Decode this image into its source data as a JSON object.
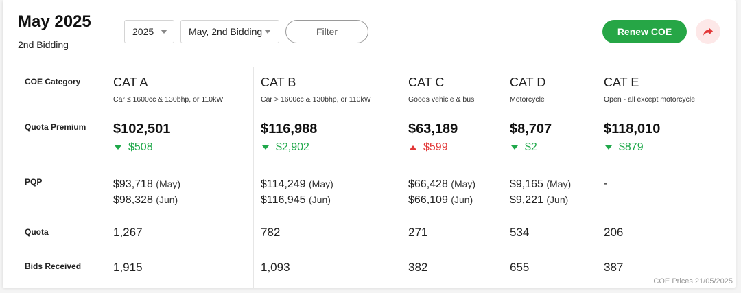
{
  "header": {
    "title": "May 2025",
    "subtitle": "2nd Bidding",
    "year_select": "2025",
    "bidding_select": "May, 2nd Bidding",
    "filter_label": "Filter",
    "renew_label": "Renew COE",
    "share_icon": "share-arrow-icon"
  },
  "row_labels": {
    "category": "COE Category",
    "premium": "Quota Premium",
    "pqp": "PQP",
    "quota": "Quota",
    "bids": "Bids Received"
  },
  "categories": [
    {
      "name": "CAT A",
      "desc": "Car ≤ 1600cc & 130bhp, or 110kW",
      "premium": "$102,501",
      "change": "$508",
      "direction": "down",
      "pqp": [
        {
          "value": "$93,718",
          "month": "(May)"
        },
        {
          "value": "$98,328",
          "month": "(Jun)"
        }
      ],
      "quota": "1,267",
      "bids": "1,915"
    },
    {
      "name": "CAT B",
      "desc": "Car > 1600cc & 130bhp, or 110kW",
      "premium": "$116,988",
      "change": "$2,902",
      "direction": "down",
      "pqp": [
        {
          "value": "$114,249",
          "month": "(May)"
        },
        {
          "value": "$116,945",
          "month": "(Jun)"
        }
      ],
      "quota": "782",
      "bids": "1,093"
    },
    {
      "name": "CAT C",
      "desc": "Goods vehicle & bus",
      "premium": "$63,189",
      "change": "$599",
      "direction": "up",
      "pqp": [
        {
          "value": "$66,428",
          "month": "(May)"
        },
        {
          "value": "$66,109",
          "month": "(Jun)"
        }
      ],
      "quota": "271",
      "bids": "382"
    },
    {
      "name": "CAT D",
      "desc": "Motorcycle",
      "premium": "$8,707",
      "change": "$2",
      "direction": "down",
      "pqp": [
        {
          "value": "$9,165",
          "month": "(May)"
        },
        {
          "value": "$9,221",
          "month": "(Jun)"
        }
      ],
      "quota": "534",
      "bids": "655"
    },
    {
      "name": "CAT E",
      "desc": "Open - all except motorcycle",
      "premium": "$118,010",
      "change": "$879",
      "direction": "down",
      "pqp_dash": "-",
      "quota": "206",
      "bids": "387"
    }
  ],
  "colors": {
    "green": "#26a646",
    "up_red": "#e23838",
    "down_green": "#1fa84a"
  },
  "footnote": "COE Prices 21/05/2025"
}
